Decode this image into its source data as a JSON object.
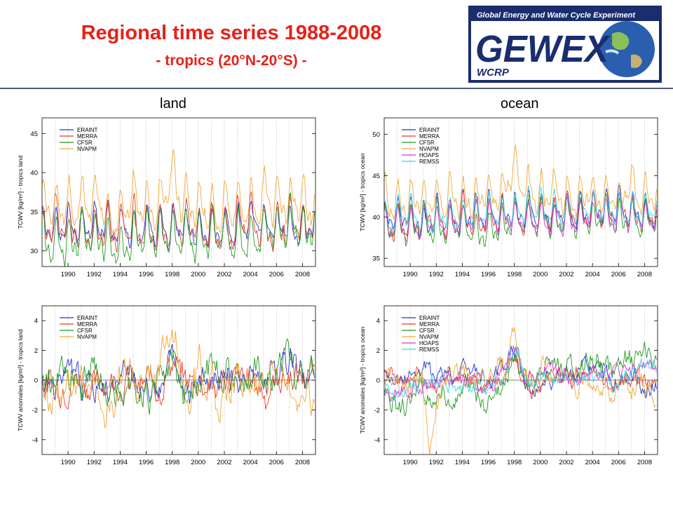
{
  "slide": {
    "title": "Regional time series 1988-2008",
    "subtitle": "- tropics (20°N-20°S) -",
    "col_land": "land",
    "col_ocean": "ocean",
    "colors": {
      "title": "#e8201a",
      "rule": "#4f5a78"
    }
  },
  "logo": {
    "tagline": "Global Energy and Water Cycle Experiment",
    "mark": "GEWEX",
    "sub": "WCRP",
    "colors": {
      "navy": "#1a2d6e",
      "bg": "#ffffff"
    }
  },
  "series_colors": {
    "ERAINT": "#2233cc",
    "MERRA": "#e83a2a",
    "CFSR": "#1f9a1f",
    "NVAPM": "#f0a83a",
    "HOAPS": "#e030d0",
    "REMSS": "#35d8e8"
  },
  "chart_data": [
    {
      "type": "line",
      "xlabel": "",
      "ylabel": "TCWV [kg/m²] - tropics land",
      "xlim": [
        1988.0,
        2009.0
      ],
      "ylim": [
        28,
        47
      ],
      "yticks": [
        30,
        35,
        40,
        45
      ],
      "xticks": [
        1990,
        1992,
        1994,
        1996,
        1998,
        2000,
        2002,
        2004,
        2006,
        2008
      ],
      "grid": "vertical dotted, yearly",
      "legend": "top-left",
      "series": [
        {
          "name": "ERAINT",
          "pattern": "seasonal",
          "base": 33.0,
          "amp": 1.8,
          "trend": 0.0,
          "noise": 0.7,
          "seed": 11
        },
        {
          "name": "MERRA",
          "pattern": "seasonal",
          "base": 33.0,
          "amp": 2.2,
          "trend": 0.0,
          "noise": 0.8,
          "seed": 12
        },
        {
          "name": "CFSR",
          "pattern": "seasonal",
          "base": 31.8,
          "amp": 2.4,
          "trend": 0.05,
          "noise": 0.8,
          "seed": 13
        },
        {
          "name": "NVAPM",
          "pattern": "seasonal",
          "base": 35.6,
          "amp": 2.3,
          "trend": 0.0,
          "noise": 0.9,
          "seed": 14,
          "bumps": [
            {
              "at": 1997.9,
              "height": 4.0,
              "width": 0.6
            }
          ]
        }
      ]
    },
    {
      "type": "line",
      "xlabel": "",
      "ylabel": "TCWV [kg/m²] - tropics ocean",
      "xlim": [
        1988.0,
        2009.0
      ],
      "ylim": [
        34,
        52
      ],
      "yticks": [
        35,
        40,
        45,
        50
      ],
      "xticks": [
        1990,
        1992,
        1994,
        1996,
        1998,
        2000,
        2002,
        2004,
        2006,
        2008
      ],
      "grid": "vertical dotted, yearly",
      "legend": "top-left",
      "series": [
        {
          "name": "ERAINT",
          "pattern": "seasonal",
          "base": 40.2,
          "amp": 1.7,
          "trend": 0.04,
          "noise": 0.6,
          "seed": 21
        },
        {
          "name": "MERRA",
          "pattern": "seasonal",
          "base": 40.0,
          "amp": 1.6,
          "trend": 0.05,
          "noise": 0.5,
          "seed": 22
        },
        {
          "name": "CFSR",
          "pattern": "seasonal",
          "base": 39.4,
          "amp": 1.7,
          "trend": 0.09,
          "noise": 0.6,
          "seed": 23
        },
        {
          "name": "NVAPM",
          "pattern": "seasonal",
          "base": 42.4,
          "amp": 1.8,
          "trend": 0.04,
          "noise": 0.7,
          "seed": 24,
          "bumps": [
            {
              "at": 1998.0,
              "height": 3.5,
              "width": 0.6
            }
          ]
        },
        {
          "name": "HOAPS",
          "pattern": "seasonal",
          "base": 39.6,
          "amp": 1.5,
          "trend": 0.05,
          "noise": 0.5,
          "seed": 25
        },
        {
          "name": "REMSS",
          "pattern": "seasonal",
          "base": 40.6,
          "amp": 1.5,
          "trend": 0.05,
          "noise": 0.5,
          "seed": 26
        }
      ]
    },
    {
      "type": "line",
      "xlabel": "",
      "ylabel": "TCWV anomalies [kg/m²] - tropics land",
      "xlim": [
        1988.0,
        2009.0
      ],
      "ylim": [
        -5,
        5
      ],
      "yticks": [
        -4,
        -2,
        0,
        2,
        4
      ],
      "xticks": [
        1990,
        1992,
        1994,
        1996,
        1998,
        2000,
        2002,
        2004,
        2006,
        2008
      ],
      "grid": "vertical dotted, yearly",
      "zeroline": true,
      "legend": "top-left",
      "series": [
        {
          "name": "ERAINT",
          "pattern": "anomaly",
          "amp": 0.9,
          "noise": 0.7,
          "seed": 31,
          "bumps": [
            {
              "at": 1997.9,
              "height": 1.5,
              "width": 0.5
            }
          ]
        },
        {
          "name": "MERRA",
          "pattern": "anomaly",
          "amp": 0.9,
          "noise": 0.8,
          "seed": 32,
          "bumps": [
            {
              "at": 1997.9,
              "height": 1.5,
              "width": 0.5
            }
          ]
        },
        {
          "name": "CFSR",
          "pattern": "anomaly",
          "amp": 1.1,
          "noise": 0.9,
          "seed": 33,
          "bumps": [
            {
              "at": 1997.9,
              "height": 1.8,
              "width": 0.5
            }
          ]
        },
        {
          "name": "NVAPM",
          "pattern": "anomaly",
          "amp": 1.3,
          "noise": 1.0,
          "seed": 34,
          "bumps": [
            {
              "at": 1998.0,
              "height": 3.4,
              "width": 0.5
            },
            {
              "at": 1993.5,
              "height": -2.6,
              "width": 0.7
            }
          ]
        }
      ]
    },
    {
      "type": "line",
      "xlabel": "",
      "ylabel": "TCWV anomalies [kg/m²] - tropics ocean",
      "xlim": [
        1988.0,
        2009.0
      ],
      "ylim": [
        -5,
        5
      ],
      "yticks": [
        -4,
        -2,
        0,
        2,
        4
      ],
      "xticks": [
        1990,
        1992,
        1994,
        1996,
        1998,
        2000,
        2002,
        2004,
        2006,
        2008
      ],
      "grid": "vertical dotted, yearly",
      "zeroline": true,
      "legend": "top-left",
      "series": [
        {
          "name": "ERAINT",
          "pattern": "anomaly",
          "amp": 0.6,
          "noise": 0.5,
          "seed": 41,
          "offset": 0.3,
          "bumps": [
            {
              "at": 1998.0,
              "height": 2.0,
              "width": 0.5
            }
          ]
        },
        {
          "name": "MERRA",
          "pattern": "anomaly",
          "amp": 0.6,
          "noise": 0.4,
          "seed": 42,
          "bumps": [
            {
              "at": 1998.0,
              "height": 2.0,
              "width": 0.5
            }
          ]
        },
        {
          "name": "CFSR",
          "pattern": "anomaly",
          "amp": 0.8,
          "noise": 0.6,
          "seed": 43,
          "trend": 0.15,
          "bumps": [
            {
              "at": 1998.0,
              "height": 2.2,
              "width": 0.5
            }
          ]
        },
        {
          "name": "NVAPM",
          "pattern": "anomaly",
          "amp": 0.9,
          "noise": 0.7,
          "seed": 44,
          "bumps": [
            {
              "at": 1998.0,
              "height": 2.8,
              "width": 0.5
            },
            {
              "at": 1991.5,
              "height": -3.5,
              "width": 0.4
            }
          ]
        },
        {
          "name": "HOAPS",
          "pattern": "anomaly",
          "amp": 0.6,
          "noise": 0.4,
          "seed": 45,
          "trend": 0.08,
          "bumps": [
            {
              "at": 1998.0,
              "height": 2.2,
              "width": 0.5
            }
          ]
        },
        {
          "name": "REMSS",
          "pattern": "anomaly",
          "amp": 0.6,
          "noise": 0.4,
          "seed": 46,
          "trend": 0.06,
          "bumps": [
            {
              "at": 1998.0,
              "height": 1.8,
              "width": 0.5
            }
          ]
        }
      ]
    }
  ]
}
